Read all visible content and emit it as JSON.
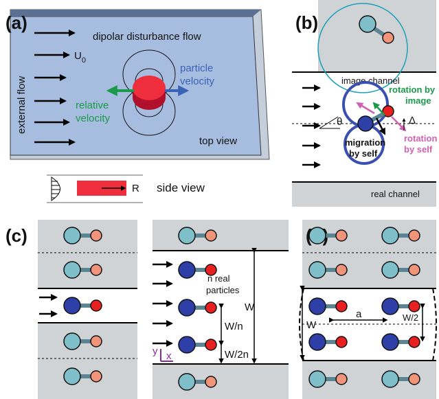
{
  "panels": [
    {
      "label": "(a)",
      "texts": {
        "flow": "dipolar disturbance flow",
        "external": "external flow",
        "u": "U",
        "u_sub": "0",
        "particle": [
          "particle",
          "velocity"
        ],
        "relative": [
          "relative",
          "velocity"
        ],
        "top": "top view",
        "r": "R",
        "side": "side view"
      }
    },
    {
      "label": "(b)",
      "texts": {
        "image_channel": "image channel",
        "rot_image": [
          "rotation by",
          "image"
        ],
        "theta": "θ",
        "delta": "Δ",
        "rot_self": [
          "rotation",
          "by self"
        ],
        "migration": [
          "migration",
          "by self"
        ],
        "real_channel": "real channel"
      }
    },
    {
      "label": "(c)",
      "texts": {
        "n_real": [
          "n real",
          "particles"
        ],
        "w": "W",
        "wn": "W/n",
        "w2n": "W/2n",
        "y": "y",
        "x": "x"
      }
    },
    {
      "label": "(d)",
      "texts": {
        "a": "a",
        "w2": "W/2",
        "w": "W"
      }
    }
  ]
}
